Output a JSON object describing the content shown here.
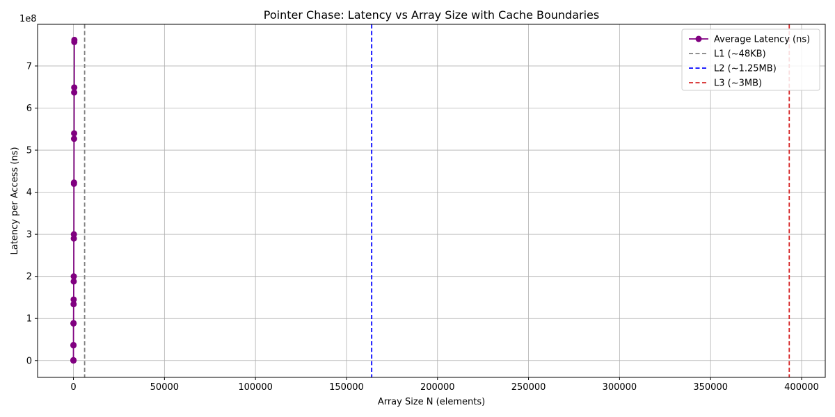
{
  "chart_data": {
    "type": "line",
    "title": "Pointer Chase: Latency vs Array Size with Cache Boundaries",
    "xlabel": "Array Size N (elements)",
    "ylabel": "Latency per Access (ns)",
    "y_offset_text": "1e8",
    "y_multiplier": 100000000,
    "xlim": [
      -19700,
      413000
    ],
    "ylim": [
      -0.4,
      7.99
    ],
    "x_ticks": [
      0,
      50000,
      100000,
      150000,
      200000,
      250000,
      300000,
      350000,
      400000
    ],
    "x_tick_labels": [
      "0",
      "50000",
      "100000",
      "150000",
      "200000",
      "250000",
      "300000",
      "350000",
      "400000"
    ],
    "y_ticks": [
      0,
      1,
      2,
      3,
      4,
      5,
      6,
      7
    ],
    "y_tick_labels": [
      "0",
      "1",
      "2",
      "3",
      "4",
      "5",
      "6",
      "7"
    ],
    "grid": true,
    "legend_position": "top-right",
    "series": [
      {
        "name": "Average Latency (ns)",
        "color": "#800080",
        "marker": "circle",
        "x": [
          1,
          2,
          4,
          8,
          16,
          32,
          64,
          96,
          128,
          160,
          192,
          224,
          256,
          288,
          320,
          352,
          384,
          416,
          448,
          480,
          512
        ],
        "y": [
          0,
          0.005,
          0.01,
          0.36,
          0.37,
          0.88,
          0.89,
          1.34,
          1.45,
          1.88,
          2.0,
          2.9,
          3.0,
          4.2,
          4.23,
          5.27,
          5.4,
          6.37,
          6.49,
          7.57,
          7.62
        ]
      }
    ],
    "vlines": [
      {
        "name": "L1 (~48KB)",
        "x": 6144,
        "color": "#808080",
        "style": "dashed"
      },
      {
        "name": "L2 (~1.25MB)",
        "x": 163840,
        "color": "#0000ff",
        "style": "dashed"
      },
      {
        "name": "L3 (~3MB)",
        "x": 393216,
        "color": "#d62728",
        "style": "dashed"
      }
    ]
  }
}
